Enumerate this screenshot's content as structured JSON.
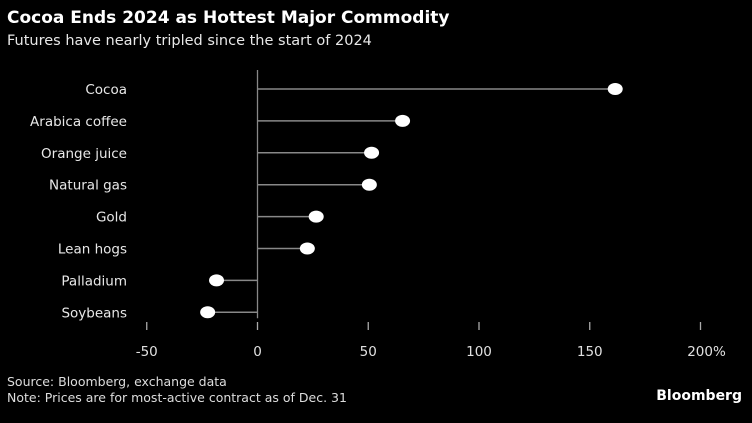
{
  "chart_data": {
    "type": "lollipop",
    "title": "Cocoa Ends 2024 as Hottest Major Commodity",
    "subtitle": "Futures have nearly tripled since the start of 2024",
    "categories": [
      "Cocoa",
      "Arabica coffee",
      "Orange juice",
      "Natural gas",
      "Gold",
      "Lean hogs",
      "Palladium",
      "Soybeans"
    ],
    "values": [
      161.5,
      65.5,
      51.5,
      50.5,
      26.5,
      22.5,
      -18.5,
      -22.5
    ],
    "xlim": [
      -50,
      200
    ],
    "xticks": [
      -50,
      0,
      50,
      100,
      150,
      200
    ],
    "xtick_labels": [
      "-50",
      "0",
      "50",
      "100",
      "150",
      "200%"
    ],
    "xlabel": "",
    "ylabel": "",
    "source": "Source: Bloomberg, exchange data",
    "note": "Note: Prices are for most-active contract as of Dec. 31",
    "logo": "Bloomberg"
  }
}
